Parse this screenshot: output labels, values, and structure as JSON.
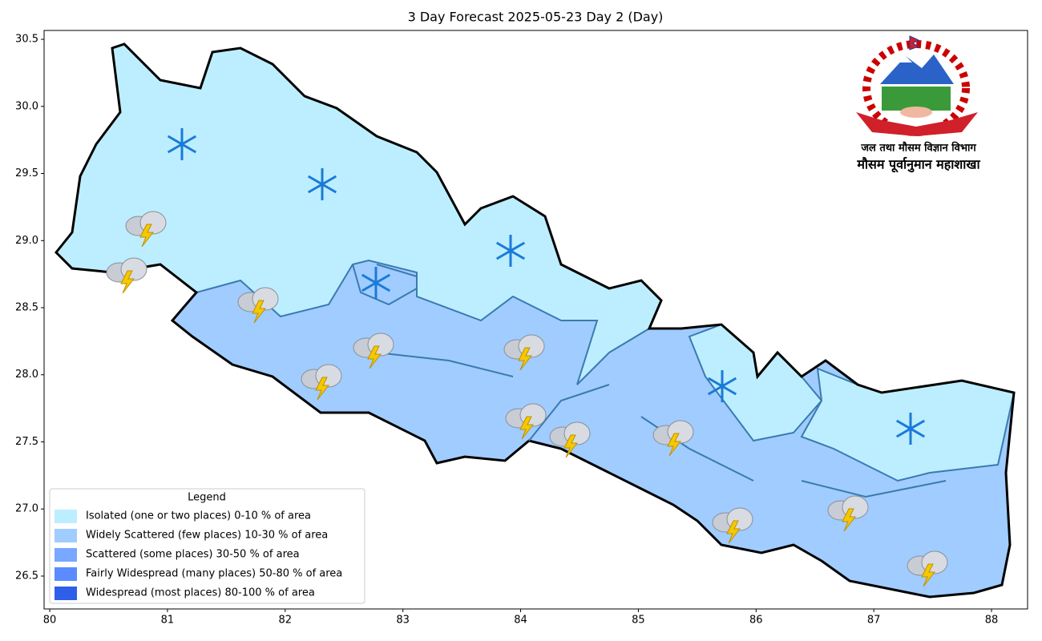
{
  "title": "3 Day Forecast 2025-05-23 Day 2 (Day)",
  "map": {
    "xlim": [
      79.952,
      88.306
    ],
    "ylim": [
      26.255,
      30.566
    ],
    "xticks": [
      80,
      81,
      82,
      83,
      84,
      85,
      86,
      87,
      88
    ],
    "yticks": [
      {
        "value": 26.5,
        "label": "26.5"
      },
      {
        "value": 27.0,
        "label": "27.0"
      },
      {
        "value": 27.5,
        "label": "27.5"
      },
      {
        "value": 28.0,
        "label": "28.0"
      },
      {
        "value": 28.5,
        "label": "28.5"
      },
      {
        "value": 29.0,
        "label": "29.0"
      },
      {
        "value": 29.5,
        "label": "29.5"
      },
      {
        "value": 30.0,
        "label": "30.0"
      },
      {
        "value": 30.5,
        "label": "30.5"
      }
    ]
  },
  "legend": {
    "title": "Legend",
    "items": [
      {
        "label": "Isolated (one or two places)  0-10 % of area",
        "color": "#bdeeff"
      },
      {
        "label": "Widely Scattered (few places) 10-30 % of area",
        "color": "#a0ccff"
      },
      {
        "label": "Scattered (some places) 30-50  % of area",
        "color": "#78a8ff"
      },
      {
        "label": "Fairly Widespread (many places) 50-80 % of area",
        "color": "#5a8cff"
      },
      {
        "label": "Widespread (most places) 80-100 % of area",
        "color": "#2f5fe8"
      }
    ]
  },
  "logo": {
    "line1": "जल तथा मौसम विज्ञान विभाग",
    "line2": "मौसम पूर्वानुमान महाशाखा"
  }
}
